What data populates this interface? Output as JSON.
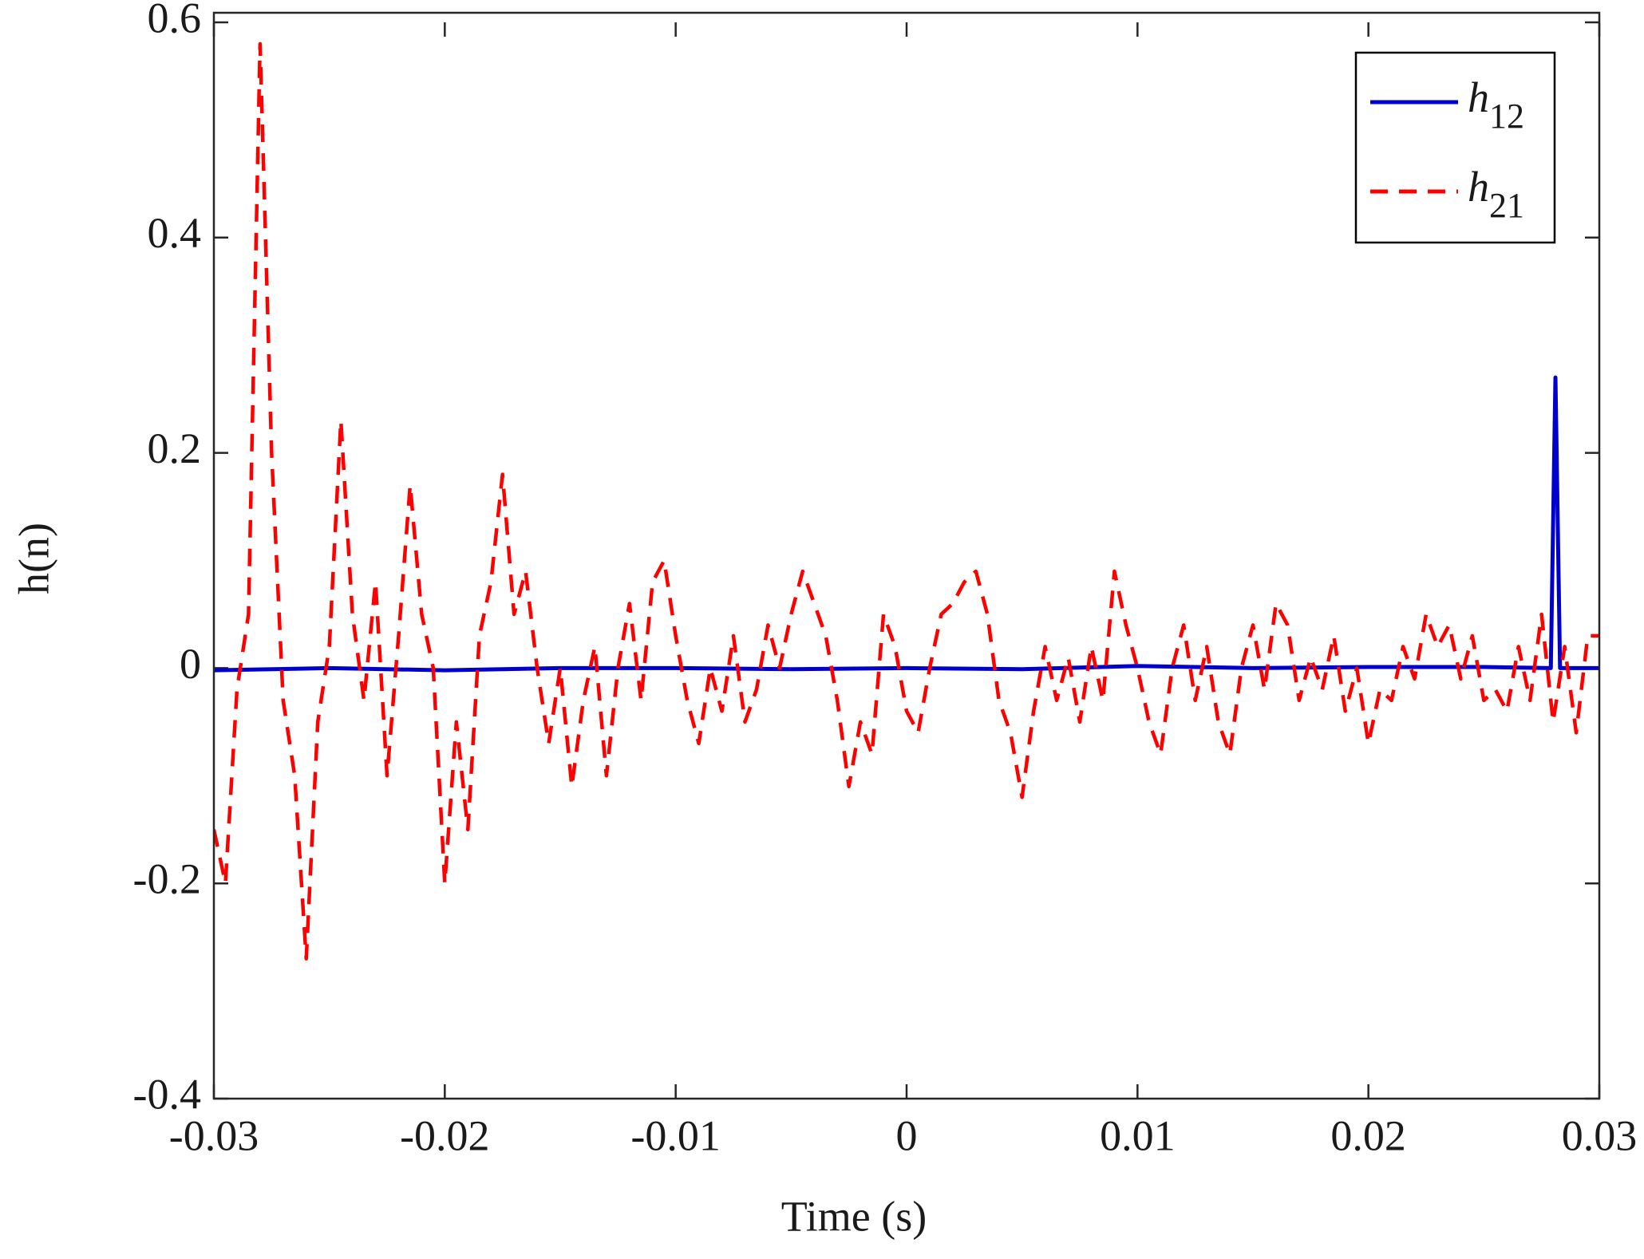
{
  "chart_data": {
    "type": "line",
    "xlabel": "Time (s)",
    "ylabel": "h(n)",
    "xlim": [
      -0.03,
      0.03
    ],
    "xticks": [
      -0.03,
      -0.02,
      -0.01,
      0,
      0.01,
      0.02,
      0.03
    ],
    "ylim": [
      -0.4,
      0.6
    ],
    "yticks": [
      -0.4,
      -0.2,
      0,
      0.2,
      0.4,
      0.6
    ],
    "legend": "upper right",
    "series": [
      {
        "name": "h12",
        "color": "#0000cc",
        "style": "solid",
        "x": [
          -0.03,
          -0.025,
          -0.02,
          -0.015,
          -0.01,
          -0.005,
          0,
          0.005,
          0.01,
          0.015,
          0.02,
          0.025,
          0.0279,
          0.0281,
          0.0283,
          0.03
        ],
        "values": [
          -0.002,
          0,
          -0.002,
          0,
          0,
          -0.001,
          0,
          -0.001,
          0.002,
          0,
          0.001,
          0.001,
          0,
          0.27,
          0,
          0
        ]
      },
      {
        "name": "h21",
        "color": "#ff0000",
        "style": "dashed",
        "x": [
          -0.03,
          -0.0295,
          -0.029,
          -0.0285,
          -0.028,
          -0.0275,
          -0.027,
          -0.0265,
          -0.026,
          -0.0255,
          -0.025,
          -0.0245,
          -0.024,
          -0.0235,
          -0.023,
          -0.0225,
          -0.022,
          -0.0215,
          -0.021,
          -0.0205,
          -0.02,
          -0.0195,
          -0.019,
          -0.0185,
          -0.018,
          -0.0175,
          -0.017,
          -0.0165,
          -0.016,
          -0.0155,
          -0.015,
          -0.0145,
          -0.014,
          -0.0135,
          -0.013,
          -0.0125,
          -0.012,
          -0.0115,
          -0.011,
          -0.0105,
          -0.01,
          -0.0095,
          -0.009,
          -0.0085,
          -0.008,
          -0.0075,
          -0.007,
          -0.0065,
          -0.006,
          -0.0055,
          -0.005,
          -0.0045,
          -0.004,
          -0.0035,
          -0.003,
          -0.0025,
          -0.002,
          -0.0015,
          -0.001,
          -0.0005,
          0,
          0.0005,
          0.001,
          0.0015,
          0.002,
          0.0025,
          0.003,
          0.0035,
          0.004,
          0.0045,
          0.005,
          0.0055,
          0.006,
          0.0065,
          0.007,
          0.0075,
          0.008,
          0.0085,
          0.009,
          0.0095,
          0.01,
          0.0105,
          0.011,
          0.0115,
          0.012,
          0.0125,
          0.013,
          0.0135,
          0.014,
          0.0145,
          0.015,
          0.0155,
          0.016,
          0.0165,
          0.017,
          0.0175,
          0.018,
          0.0185,
          0.019,
          0.0195,
          0.02,
          0.0205,
          0.021,
          0.0215,
          0.022,
          0.0225,
          0.023,
          0.0235,
          0.024,
          0.0245,
          0.025,
          0.0255,
          0.026,
          0.0265,
          0.027,
          0.0275,
          0.028,
          0.0285,
          0.029,
          0.0295,
          0.03
        ],
        "values": [
          -0.15,
          -0.2,
          -0.02,
          0.05,
          0.58,
          0.2,
          -0.03,
          -0.1,
          -0.27,
          -0.05,
          0.02,
          0.23,
          0.05,
          -0.03,
          0.08,
          -0.1,
          0.03,
          0.17,
          0.05,
          0,
          -0.2,
          -0.05,
          -0.15,
          0.03,
          0.08,
          0.18,
          0.05,
          0.09,
          0,
          -0.07,
          0,
          -0.11,
          -0.03,
          0.02,
          -0.1,
          0,
          0.06,
          -0.03,
          0.08,
          0.1,
          0.03,
          -0.03,
          -0.07,
          0,
          -0.04,
          0.03,
          -0.05,
          -0.02,
          0.04,
          0,
          0.05,
          0.09,
          0.06,
          0.03,
          -0.03,
          -0.11,
          -0.05,
          -0.08,
          0.05,
          0.02,
          -0.04,
          -0.06,
          0,
          0.05,
          0.06,
          0.08,
          0.09,
          0.05,
          -0.03,
          -0.06,
          -0.12,
          -0.04,
          0.02,
          -0.03,
          0.01,
          -0.05,
          0.02,
          -0.03,
          0.09,
          0.04,
          0,
          -0.05,
          -0.08,
          0,
          0.04,
          -0.03,
          0.02,
          -0.05,
          -0.08,
          0,
          0.04,
          -0.02,
          0.06,
          0.04,
          -0.03,
          0.01,
          -0.02,
          0.03,
          -0.04,
          0,
          -0.07,
          -0.02,
          -0.03,
          0.02,
          -0.01,
          0.05,
          0.02,
          0.04,
          -0.01,
          0.03,
          -0.03,
          -0.02,
          -0.04,
          0.02,
          -0.03,
          0.05,
          -0.05,
          0.02,
          -0.06,
          0.03,
          0.03
        ]
      }
    ]
  }
}
